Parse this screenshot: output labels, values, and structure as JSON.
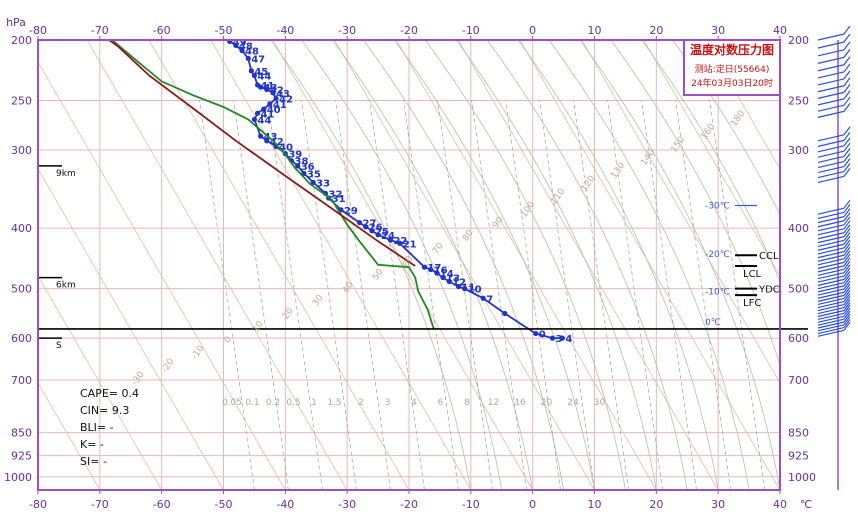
{
  "chart_data": {
    "type": "line",
    "title": "温度对数压力图",
    "station_label": "测站:定日(55664)",
    "time_label": "24年03月03日20时",
    "x_axis": {
      "unit": "℃",
      "pressure_unit": "hPa",
      "range": [
        -80,
        40
      ],
      "ticks": [
        -80,
        -70,
        -60,
        -50,
        -40,
        -30,
        -20,
        -10,
        0,
        10,
        20,
        30,
        40
      ]
    },
    "y_axis": {
      "scale": "log-pressure",
      "range": [
        1050,
        200
      ],
      "ticks": [
        200,
        250,
        300,
        400,
        500,
        600,
        700,
        850,
        925,
        1000
      ]
    },
    "grid": true,
    "surface_pressure": 580,
    "height_marks": [
      {
        "label": "9km",
        "p": 318
      },
      {
        "label": "6km",
        "p": 480
      },
      {
        "label": "S",
        "p": 600
      }
    ],
    "isotherm_labels": [
      {
        "label": "-30℃",
        "p": 368
      },
      {
        "label": "-20℃",
        "p": 440
      },
      {
        "label": "-10℃",
        "p": 505
      },
      {
        "label": "0℃",
        "p": 565
      }
    ],
    "level_markers": [
      {
        "label": "CCL",
        "p": 442
      },
      {
        "label": "LCL",
        "p": 460
      },
      {
        "label": "YDC",
        "p": 500
      },
      {
        "label": "LFC",
        "p": 512
      }
    ],
    "mixing_ratio_labels": [
      "0.05",
      "0.1",
      "0.2",
      "0.5",
      "1",
      "1.5",
      "2",
      "3",
      "4",
      "6",
      "8",
      "12",
      "16",
      "20",
      "24",
      "30"
    ],
    "adiabat_labels": [
      "-30",
      "-20",
      "-10",
      "0",
      "10",
      "20",
      "30",
      "40",
      "50",
      "60",
      "70",
      "80",
      "90",
      "100",
      "110",
      "120",
      "130",
      "140",
      "150",
      "160",
      "180"
    ],
    "indices": [
      {
        "name": "CAPE",
        "value": "0.4"
      },
      {
        "name": "CIN",
        "value": "9.3"
      },
      {
        "name": "BLI",
        "value": "-"
      },
      {
        "name": "K",
        "value": "-"
      },
      {
        "name": "SI",
        "value": "-"
      }
    ],
    "series": [
      {
        "role": "temperature",
        "color": "#2233cc",
        "points": [
          {
            "t": 4.8,
            "p": 600,
            "label": "4"
          },
          {
            "t": 3.2,
            "p": 600,
            "label": "3"
          },
          {
            "t": 0.5,
            "p": 590,
            "label": "0"
          },
          {
            "t": -4.5,
            "p": 548,
            "label": ""
          },
          {
            "t": -8.0,
            "p": 518,
            "label": "7"
          },
          {
            "t": -11.0,
            "p": 500,
            "label": "10"
          },
          {
            "t": -12.0,
            "p": 496,
            "label": "11"
          },
          {
            "t": -13.5,
            "p": 487,
            "label": "12"
          },
          {
            "t": -14.5,
            "p": 480,
            "label": "13"
          },
          {
            "t": -15.5,
            "p": 472,
            "label": "14"
          },
          {
            "t": -16.5,
            "p": 466,
            "label": "16"
          },
          {
            "t": -17.5,
            "p": 462,
            "label": "17"
          },
          {
            "t": -21.5,
            "p": 423,
            "label": "21"
          },
          {
            "t": -23.0,
            "p": 418,
            "label": "22"
          },
          {
            "t": -25.0,
            "p": 410,
            "label": "24"
          },
          {
            "t": -26.0,
            "p": 404,
            "label": "25"
          },
          {
            "t": -27.0,
            "p": 398,
            "label": "26"
          },
          {
            "t": -28.0,
            "p": 392,
            "label": "27"
          },
          {
            "t": -31.0,
            "p": 374,
            "label": "29"
          },
          {
            "t": -33.0,
            "p": 358,
            "label": "31"
          },
          {
            "t": -33.5,
            "p": 352,
            "label": "32"
          },
          {
            "t": -35.5,
            "p": 338,
            "label": "33"
          },
          {
            "t": -37.0,
            "p": 327,
            "label": "35"
          },
          {
            "t": -38.0,
            "p": 318,
            "label": "36"
          },
          {
            "t": -39.0,
            "p": 312,
            "label": "38"
          },
          {
            "t": -40.0,
            "p": 304,
            "label": "39"
          },
          {
            "t": -41.5,
            "p": 296,
            "label": "40"
          },
          {
            "t": -43.0,
            "p": 290,
            "label": "42"
          },
          {
            "t": -44.0,
            "p": 285,
            "label": "43"
          },
          {
            "t": -45.0,
            "p": 268,
            "label": "44"
          },
          {
            "t": -44.5,
            "p": 262,
            "label": "41"
          },
          {
            "t": -43.5,
            "p": 258,
            "label": "40"
          },
          {
            "t": -42.5,
            "p": 253,
            "label": "41"
          },
          {
            "t": -41.5,
            "p": 248,
            "label": "42"
          },
          {
            "t": -42.0,
            "p": 243,
            "label": "43"
          },
          {
            "t": -43.0,
            "p": 240,
            "label": "42"
          },
          {
            "t": -44.0,
            "p": 238,
            "label": "43"
          },
          {
            "t": -44.5,
            "p": 236,
            "label": "41"
          },
          {
            "t": -45.0,
            "p": 228,
            "label": "44"
          },
          {
            "t": -45.5,
            "p": 224,
            "label": "45"
          },
          {
            "t": -46.0,
            "p": 214,
            "label": "47"
          },
          {
            "t": -47.0,
            "p": 208,
            "label": "48"
          },
          {
            "t": -48.0,
            "p": 204,
            "label": "48"
          },
          {
            "t": -49.0,
            "p": 201,
            "label": "49"
          }
        ]
      },
      {
        "role": "dewpoint",
        "color": "#228822",
        "points": [
          {
            "t": -16.0,
            "p": 580
          },
          {
            "t": -17.0,
            "p": 540
          },
          {
            "t": -18.5,
            "p": 505
          },
          {
            "t": -19.0,
            "p": 480
          },
          {
            "t": -20.0,
            "p": 462
          },
          {
            "t": -25.0,
            "p": 458
          },
          {
            "t": -28.0,
            "p": 420
          },
          {
            "t": -30.0,
            "p": 395
          },
          {
            "t": -32.5,
            "p": 360
          },
          {
            "t": -36.0,
            "p": 340
          },
          {
            "t": -38.5,
            "p": 320
          },
          {
            "t": -40.0,
            "p": 305
          },
          {
            "t": -42.0,
            "p": 290
          },
          {
            "t": -46.0,
            "p": 268
          },
          {
            "t": -50.0,
            "p": 256
          },
          {
            "t": -55.0,
            "p": 245
          },
          {
            "t": -60.0,
            "p": 233
          },
          {
            "t": -63.5,
            "p": 218
          },
          {
            "t": -66.0,
            "p": 208
          },
          {
            "t": -68.0,
            "p": 200
          }
        ]
      },
      {
        "role": "parcel",
        "color": "#8b1a1a",
        "points": [
          {
            "t": -19.0,
            "p": 460
          },
          {
            "t": -25.0,
            "p": 420
          },
          {
            "t": -32.0,
            "p": 375
          },
          {
            "t": -40.0,
            "p": 330
          },
          {
            "t": -48.0,
            "p": 290
          },
          {
            "t": -55.0,
            "p": 257
          },
          {
            "t": -62.0,
            "p": 228
          },
          {
            "t": -67.0,
            "p": 205
          },
          {
            "t": -68.5,
            "p": 200
          }
        ]
      }
    ]
  }
}
